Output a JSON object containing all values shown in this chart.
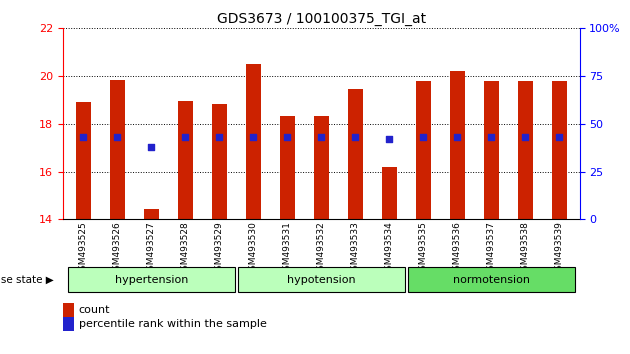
{
  "title": "GDS3673 / 100100375_TGI_at",
  "categories": [
    "GSM493525",
    "GSM493526",
    "GSM493527",
    "GSM493528",
    "GSM493529",
    "GSM493530",
    "GSM493531",
    "GSM493532",
    "GSM493533",
    "GSM493534",
    "GSM493535",
    "GSM493536",
    "GSM493537",
    "GSM493538",
    "GSM493539"
  ],
  "bar_heights": [
    18.9,
    19.85,
    14.45,
    18.95,
    18.85,
    20.5,
    18.35,
    18.35,
    19.45,
    16.2,
    19.8,
    20.2,
    19.8,
    19.8,
    19.8
  ],
  "blue_dot_values": [
    17.45,
    17.45,
    17.05,
    17.45,
    17.45,
    17.45,
    17.45,
    17.45,
    17.45,
    17.35,
    17.45,
    17.45,
    17.45,
    17.45,
    17.45
  ],
  "bar_color": "#cc2200",
  "dot_color": "#2222cc",
  "ylim_left": [
    14,
    22
  ],
  "ylim_right": [
    0,
    100
  ],
  "yticks_left": [
    14,
    16,
    18,
    20,
    22
  ],
  "yticks_right": [
    0,
    25,
    50,
    75,
    100
  ],
  "group_labels": [
    "hypertension",
    "hypotension",
    "normotension"
  ],
  "group_starts": [
    0,
    5,
    10
  ],
  "group_ends": [
    5,
    10,
    15
  ],
  "group_colors": [
    "#bbffbb",
    "#bbffbb",
    "#66dd66"
  ],
  "legend_count_label": "count",
  "legend_percentile_label": "percentile rank within the sample"
}
